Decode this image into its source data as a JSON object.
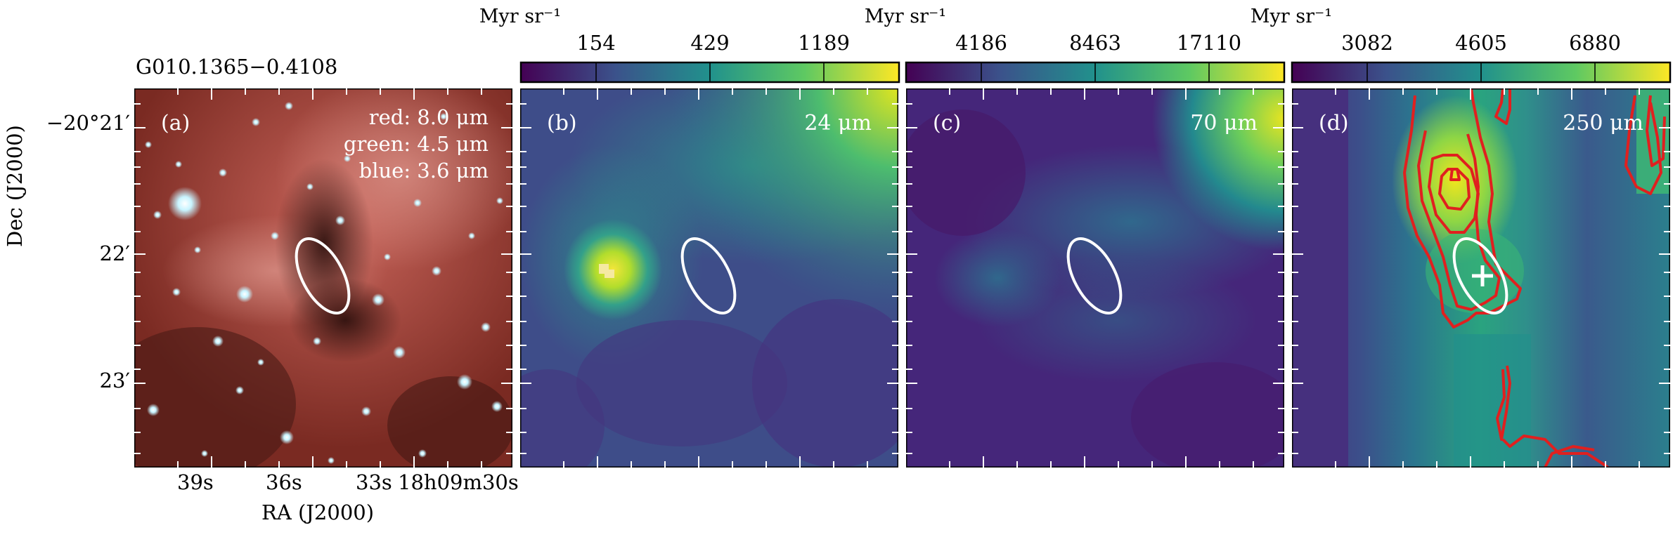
{
  "figure": {
    "title": "G010.1365−0.4108",
    "y_axis_label": "Dec (J2000)",
    "x_axis_label": "RA (J2000)",
    "dec_ticks": [
      "−20°21′",
      "22′",
      "23′"
    ],
    "ra_ticks": [
      "39s",
      "36s",
      "33s",
      "18h09m30s"
    ]
  },
  "panels": [
    {
      "id": "a",
      "label": "(a)",
      "legend": [
        "red: 8.0 μm",
        "green: 4.5 μm",
        "blue: 3.6 μm"
      ]
    },
    {
      "id": "b",
      "label": "(b)",
      "wavelength": "24 μm",
      "colorbar_unit": "Myr sr⁻¹",
      "colorbar_ticks": [
        "154",
        "429",
        "1189"
      ]
    },
    {
      "id": "c",
      "label": "(c)",
      "wavelength": "70 μm",
      "colorbar_unit": "Myr sr⁻¹",
      "colorbar_ticks": [
        "4186",
        "8463",
        "17110"
      ]
    },
    {
      "id": "d",
      "label": "(d)",
      "wavelength": "250 μm",
      "colorbar_unit": "Myr sr⁻¹",
      "colorbar_ticks": [
        "3082",
        "4605",
        "6880"
      ]
    }
  ],
  "colors": {
    "ellipse": "#ffffff",
    "contours": "#e0201f",
    "colormap": [
      "#440154",
      "#3b528b",
      "#21918c",
      "#5ec962",
      "#fde725"
    ]
  }
}
